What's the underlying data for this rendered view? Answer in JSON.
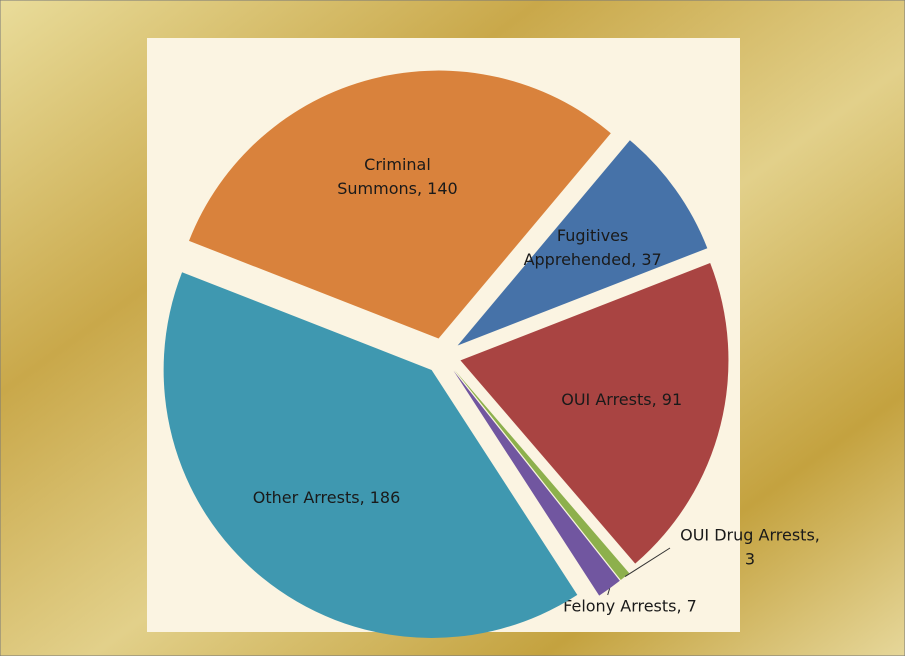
{
  "chart_data": {
    "type": "pie",
    "labels": [
      [
        "Fugitives",
        "Apprehended, 37"
      ],
      [
        "OUI Arrests, 91"
      ],
      [
        "OUI Drug Arrests,",
        "3"
      ],
      [
        "Felony Arrests, 7"
      ],
      [
        "Other Arrests, 186"
      ],
      [
        "Criminal",
        "Summons, 140"
      ]
    ],
    "values": [
      37,
      91,
      3,
      7,
      186,
      140
    ],
    "colors": [
      "#4672a8",
      "#a94442",
      "#8db04c",
      "#7156a0",
      "#3f98b0",
      "#d9823c"
    ]
  }
}
